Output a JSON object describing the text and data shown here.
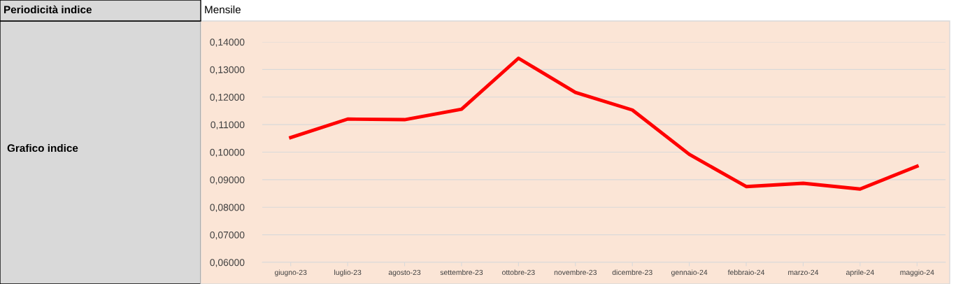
{
  "chart_data": {
    "type": "line",
    "categories": [
      "giugno-23",
      "luglio-23",
      "agosto-23",
      "settembre-23",
      "ottobre-23",
      "novembre-23",
      "dicembre-23",
      "gennaio-24",
      "febbraio-24",
      "marzo-24",
      "aprile-24",
      "maggio-24"
    ],
    "series": [
      {
        "color": "#ff0000",
        "values": [
          0.1053,
          0.112,
          0.1118,
          0.1156,
          0.1341,
          0.1217,
          0.1153,
          0.0992,
          0.0875,
          0.0887,
          0.0866,
          0.0949
        ]
      }
    ],
    "ylim": [
      0.06,
      0.14
    ],
    "yticks": [
      {
        "value": 0.06,
        "label": "0,06000"
      },
      {
        "value": 0.07,
        "label": "0,07000"
      },
      {
        "value": 0.08,
        "label": "0,08000"
      },
      {
        "value": 0.09,
        "label": "0,09000"
      },
      {
        "value": 0.1,
        "label": "0,10000"
      },
      {
        "value": 0.11,
        "label": "0,11000"
      },
      {
        "value": 0.12,
        "label": "0,12000"
      },
      {
        "value": 0.13,
        "label": "0,13000"
      },
      {
        "value": 0.14,
        "label": "0,14000"
      }
    ],
    "grid": "y",
    "legend": false,
    "marker": "none",
    "line_style": "solid",
    "annotations": [
      "Periodicità indice",
      "Mensile",
      "Grafico indice"
    ]
  }
}
